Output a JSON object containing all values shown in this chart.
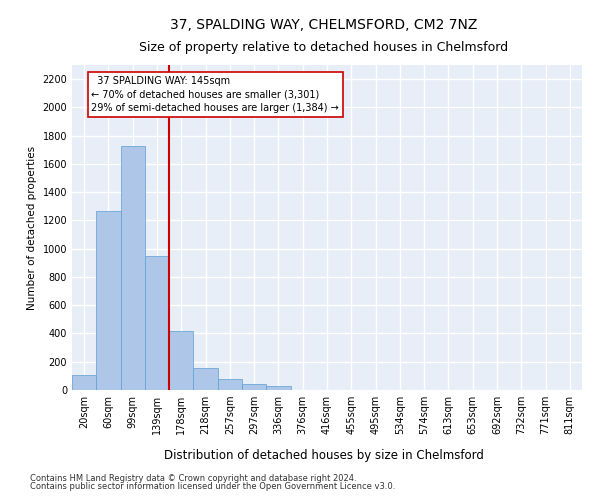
{
  "title": "37, SPALDING WAY, CHELMSFORD, CM2 7NZ",
  "subtitle": "Size of property relative to detached houses in Chelmsford",
  "xlabel": "Distribution of detached houses by size in Chelmsford",
  "ylabel": "Number of detached properties",
  "categories": [
    "20sqm",
    "60sqm",
    "99sqm",
    "139sqm",
    "178sqm",
    "218sqm",
    "257sqm",
    "297sqm",
    "336sqm",
    "376sqm",
    "416sqm",
    "455sqm",
    "495sqm",
    "534sqm",
    "574sqm",
    "613sqm",
    "653sqm",
    "692sqm",
    "732sqm",
    "771sqm",
    "811sqm"
  ],
  "values": [
    105,
    1270,
    1730,
    950,
    415,
    155,
    75,
    42,
    25,
    0,
    0,
    0,
    0,
    0,
    0,
    0,
    0,
    0,
    0,
    0,
    0
  ],
  "bar_color": "#aec6e8",
  "bar_edge_color": "#5a9fd4",
  "vline_color": "#cc0000",
  "annotation_text": "  37 SPALDING WAY: 145sqm\n← 70% of detached houses are smaller (3,301)\n29% of semi-detached houses are larger (1,384) →",
  "annotation_box_color": "#ffffff",
  "annotation_box_edge": "#cc0000",
  "ylim": [
    0,
    2300
  ],
  "yticks": [
    0,
    200,
    400,
    600,
    800,
    1000,
    1200,
    1400,
    1600,
    1800,
    2000,
    2200
  ],
  "background_color": "#e8eef7",
  "grid_color": "#ffffff",
  "footer1": "Contains HM Land Registry data © Crown copyright and database right 2024.",
  "footer2": "Contains public sector information licensed under the Open Government Licence v3.0.",
  "title_fontsize": 10,
  "subtitle_fontsize": 9,
  "xlabel_fontsize": 8.5,
  "ylabel_fontsize": 7.5,
  "tick_fontsize": 7,
  "footer_fontsize": 6,
  "ann_fontsize": 7
}
